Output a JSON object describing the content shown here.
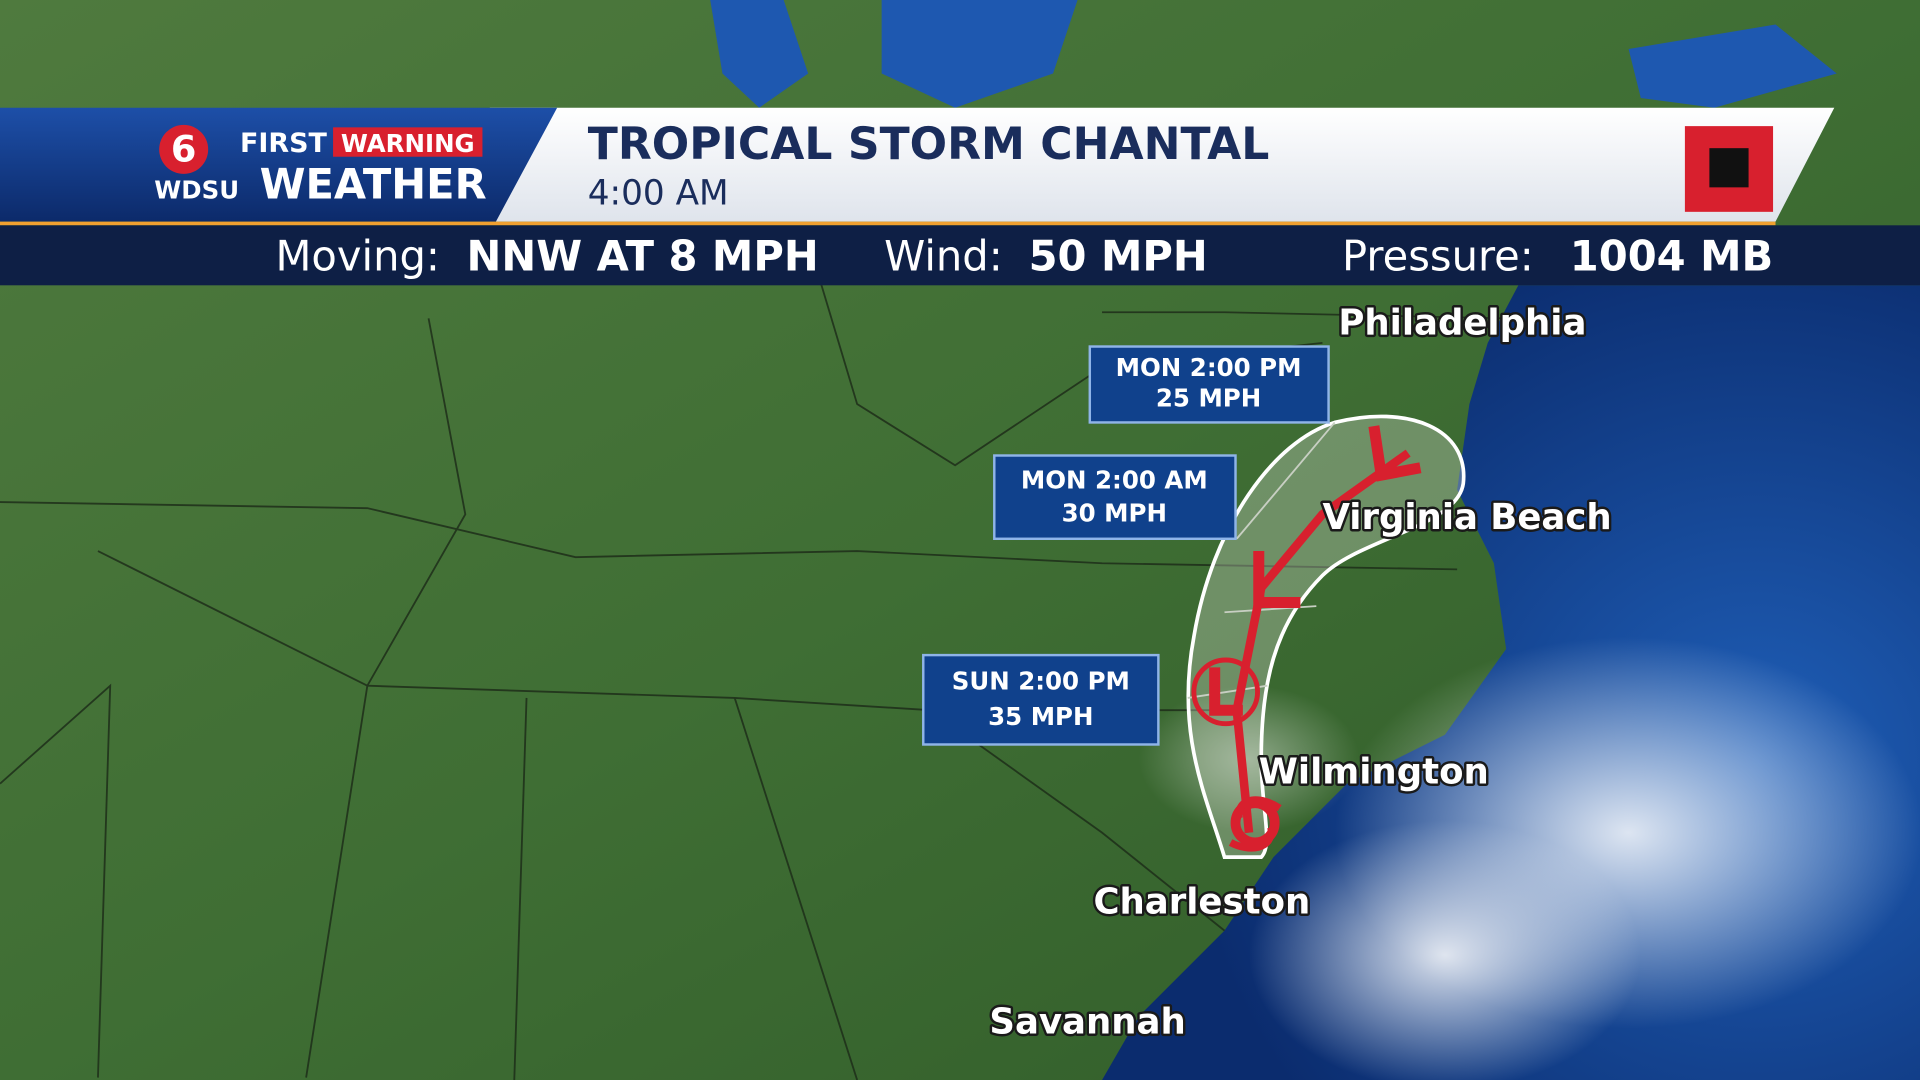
{
  "header": {
    "channel": "6",
    "brand_first": "FIRST",
    "brand_warning": "WARNING",
    "brand_station": "WDSU",
    "brand_weather": "WEATHER",
    "title": "TROPICAL STORM CHANTAL",
    "time": "4:00 AM"
  },
  "stats": [
    {
      "label": "Moving:",
      "value": "NNW AT 8 MPH"
    },
    {
      "label": "Wind:",
      "value": "50 MPH"
    },
    {
      "label": "Pressure:",
      "value": "1004 MB"
    }
  ],
  "forecast_points": [
    {
      "time": "MON 2:00 PM",
      "wind": "25 MPH"
    },
    {
      "time": "MON 2:00 AM",
      "wind": "30 MPH"
    },
    {
      "time": "SUN 2:00 PM",
      "wind": "35 MPH"
    }
  ],
  "cities": [
    "Philadelphia",
    "Virginia Beach",
    "Wilmington",
    "Charleston",
    "Savannah"
  ]
}
